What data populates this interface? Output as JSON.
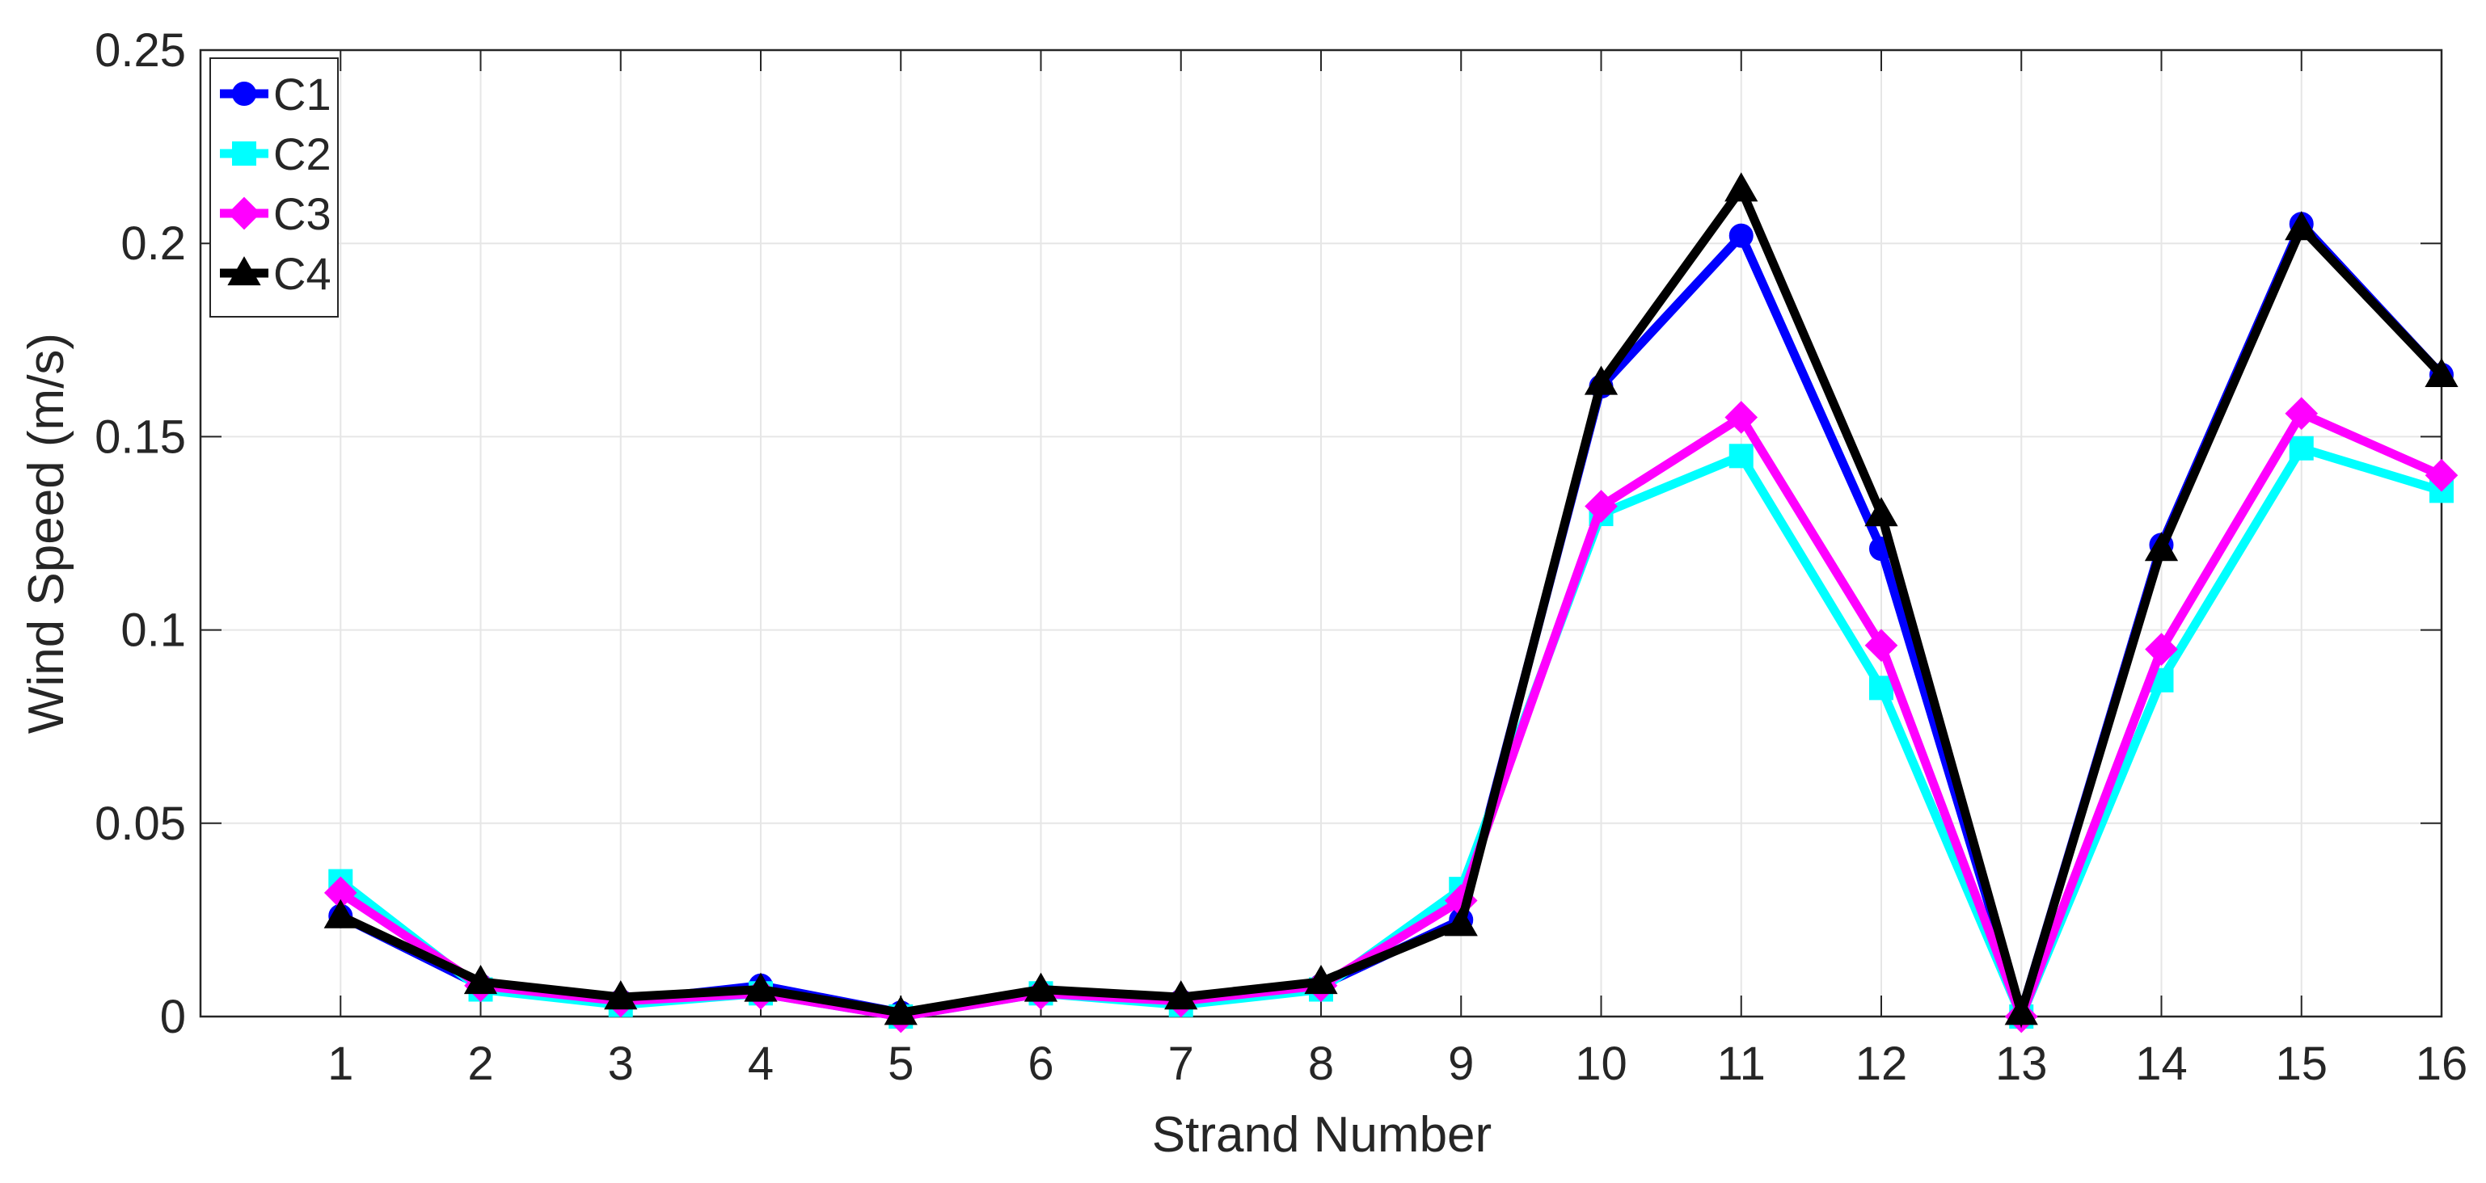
{
  "chart_data": {
    "type": "line",
    "title": "",
    "xlabel": "Strand Number",
    "ylabel": "Wind Speed (m/s)",
    "x": [
      1,
      2,
      3,
      4,
      5,
      6,
      7,
      8,
      9,
      10,
      11,
      12,
      13,
      14,
      15,
      16
    ],
    "xlim": [
      0,
      16
    ],
    "ylim": [
      0,
      0.25
    ],
    "xticks": [
      "1",
      "2",
      "3",
      "4",
      "5",
      "6",
      "7",
      "8",
      "9",
      "10",
      "11",
      "12",
      "13",
      "14",
      "15",
      "16"
    ],
    "yticks": [
      "0",
      "0.05",
      "0.1",
      "0.15",
      "0.2",
      "0.25"
    ],
    "ytick_values": [
      0,
      0.05,
      0.1,
      0.15,
      0.2,
      0.25
    ],
    "grid": true,
    "legend_position": "top-left",
    "series": [
      {
        "name": "C1",
        "color": "#0000ff",
        "marker": "circle",
        "values": [
          0.026,
          0.008,
          0.004,
          0.008,
          0.001,
          0.006,
          0.004,
          0.008,
          0.025,
          0.163,
          0.202,
          0.121,
          0.001,
          0.122,
          0.205,
          0.166
        ]
      },
      {
        "name": "C2",
        "color": "#00ffff",
        "marker": "square",
        "values": [
          0.035,
          0.007,
          0.003,
          0.006,
          0.0,
          0.006,
          0.003,
          0.007,
          0.033,
          0.13,
          0.145,
          0.085,
          0.0,
          0.087,
          0.147,
          0.136
        ]
      },
      {
        "name": "C3",
        "color": "#ff00ff",
        "marker": "diamond",
        "values": [
          0.032,
          0.008,
          0.004,
          0.006,
          0.0,
          0.006,
          0.004,
          0.008,
          0.03,
          0.132,
          0.155,
          0.096,
          0.0,
          0.095,
          0.156,
          0.14
        ]
      },
      {
        "name": "C4",
        "color": "#000000",
        "marker": "triangle",
        "values": [
          0.026,
          0.009,
          0.005,
          0.007,
          0.001,
          0.007,
          0.005,
          0.009,
          0.024,
          0.164,
          0.214,
          0.13,
          0.001,
          0.121,
          0.204,
          0.166
        ]
      }
    ]
  }
}
